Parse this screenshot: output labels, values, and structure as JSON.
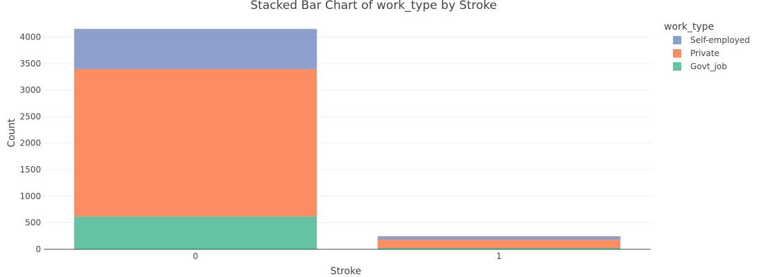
{
  "chart_data": {
    "type": "bar",
    "stacked": true,
    "title": "Stacked Bar Chart of work_type by Stroke",
    "xlabel": "Stroke",
    "ylabel": "Count",
    "categories": [
      "0",
      "1"
    ],
    "ylim": [
      0,
      4150
    ],
    "yticks": [
      0,
      500,
      1000,
      1500,
      2000,
      2500,
      3000,
      3500,
      4000
    ],
    "grid": true,
    "legend_title": "work_type",
    "legend_position": "top-right",
    "series": [
      {
        "name": "Govt_job",
        "values": [
          624,
          33
        ],
        "color": "#66c2a5"
      },
      {
        "name": "Private",
        "values": [
          2776,
          149
        ],
        "color": "#fc8d62"
      },
      {
        "name": "Self-employed",
        "values": [
          754,
          65
        ],
        "color": "#8da0cb"
      }
    ],
    "legend_order": [
      "Self-employed",
      "Private",
      "Govt_job"
    ]
  }
}
